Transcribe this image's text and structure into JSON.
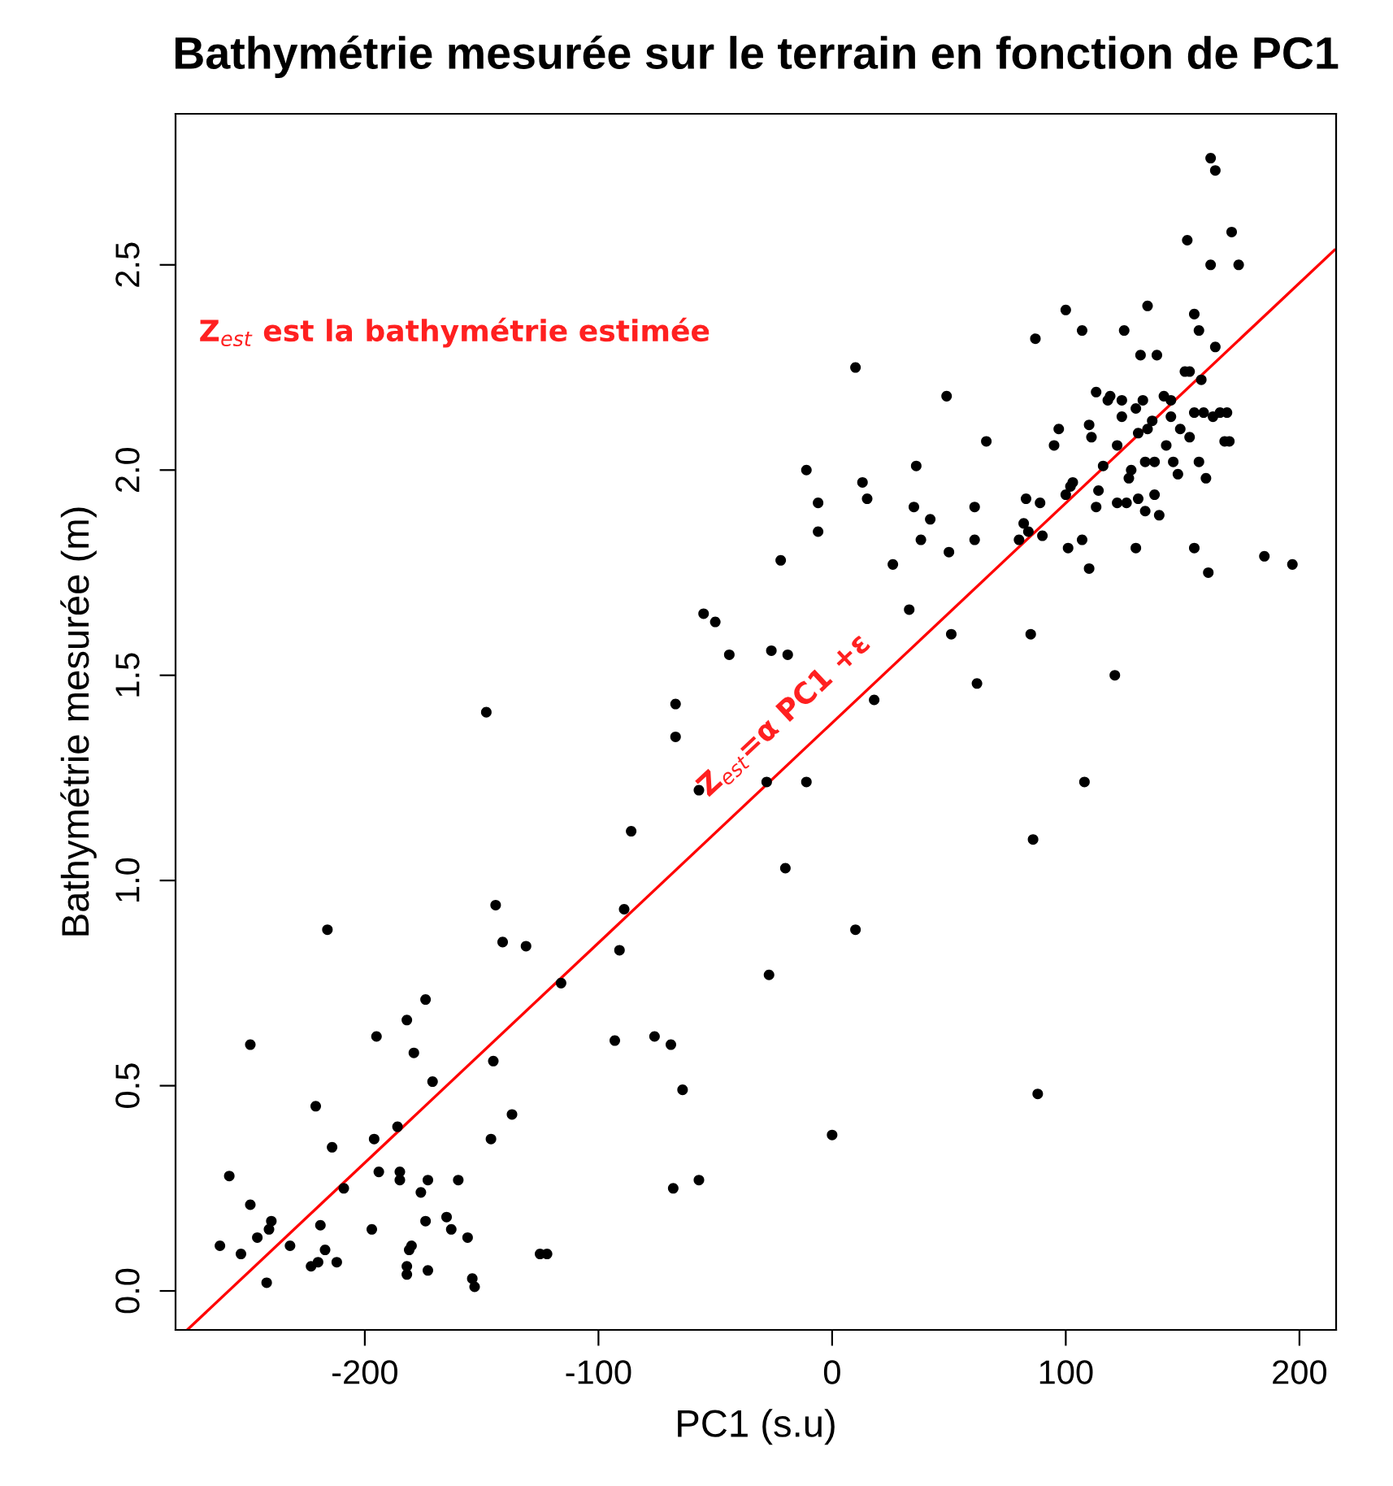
{
  "chart_data": {
    "type": "scatter",
    "title": "Bathymétrie mesurée sur le terrain en fonction de PC1",
    "xlabel": "PC1 (s.u)",
    "ylabel": "Bathymétrie mesurée (m)",
    "xlim": [
      -281,
      215.7
    ],
    "ylim": [
      -0.095,
      2.868
    ],
    "xticks": [
      -200,
      -100,
      0,
      100,
      200
    ],
    "yticks": [
      {
        "value": 0,
        "label": "0.0"
      },
      {
        "value": 0.5,
        "label": "0.5"
      },
      {
        "value": 1,
        "label": "1.0"
      },
      {
        "value": 1.5,
        "label": "1.5"
      },
      {
        "value": 2,
        "label": "2.0"
      },
      {
        "value": 2.5,
        "label": "2.5"
      }
    ],
    "grid": false,
    "annotations": [
      "Z$_{est}$ est la bathymétrie estimée",
      "Z$_{est}$=α PC1 +ε"
    ],
    "series": [
      {
        "marker": "circle",
        "color": "#000000",
        "x": [
          -258,
          -262,
          -253,
          -249,
          -249,
          -246,
          -241,
          -240,
          -242,
          -232,
          -223,
          -220,
          -221,
          -219,
          -217,
          -216,
          -214,
          -212,
          -209,
          -197,
          -196,
          -195,
          -194,
          -186,
          -185,
          -185,
          -182,
          -181,
          -180,
          -182,
          -182,
          -179,
          -176,
          -174,
          -174,
          -173,
          -173,
          -171,
          -165,
          -163,
          -160,
          -156,
          -154,
          -153,
          -148,
          -146,
          -145,
          -144,
          -141,
          -137,
          -131,
          -125,
          -122,
          -116,
          -93,
          -91,
          -89,
          -86,
          -76,
          -69,
          -67,
          -67,
          -68,
          -64,
          -57,
          -57,
          -55,
          -50,
          -44,
          -28,
          -27,
          -26,
          -22,
          -20,
          -19,
          -11,
          -11,
          -6,
          -6,
          0,
          10,
          10,
          13,
          15,
          18,
          26,
          33,
          35,
          36,
          38,
          42,
          49,
          51,
          50,
          61,
          61,
          62,
          66,
          80,
          82,
          83,
          84,
          85,
          86,
          87,
          88,
          89,
          90,
          95,
          97,
          100,
          101,
          100,
          102,
          103,
          107,
          107,
          108,
          110,
          110,
          111,
          113,
          113,
          114,
          116,
          118,
          119,
          121,
          122,
          122,
          124,
          124,
          125,
          126,
          127,
          128,
          130,
          130,
          131,
          131,
          132,
          133,
          134,
          134,
          135,
          135,
          137,
          138,
          138,
          139,
          140,
          142,
          143,
          145,
          145,
          146,
          148,
          149,
          151,
          152,
          153,
          153,
          155,
          155,
          155,
          157,
          157,
          158,
          159,
          160,
          162,
          161,
          162,
          163,
          164,
          164,
          166,
          168,
          170,
          171,
          174,
          169,
          185,
          197
        ],
        "values": [
          0.28,
          0.11,
          0.09,
          0.21,
          0.6,
          0.13,
          0.15,
          0.17,
          0.02,
          0.11,
          0.06,
          0.07,
          0.45,
          0.16,
          0.1,
          0.88,
          0.35,
          0.07,
          0.25,
          0.15,
          0.37,
          0.62,
          0.29,
          0.4,
          0.27,
          0.29,
          0.66,
          0.1,
          0.11,
          0.04,
          0.06,
          0.58,
          0.24,
          0.71,
          0.17,
          0.05,
          0.27,
          0.51,
          0.18,
          0.15,
          0.27,
          0.13,
          0.03,
          0.01,
          1.41,
          0.37,
          0.56,
          0.94,
          0.85,
          0.43,
          0.84,
          0.09,
          0.09,
          0.75,
          0.61,
          0.83,
          0.93,
          1.12,
          0.62,
          0.6,
          1.43,
          1.35,
          0.25,
          0.49,
          0.27,
          1.22,
          1.65,
          1.63,
          1.55,
          1.24,
          0.77,
          1.56,
          1.78,
          1.03,
          1.55,
          1.24,
          2.0,
          1.92,
          1.85,
          0.38,
          0.88,
          2.25,
          1.97,
          1.93,
          1.44,
          1.77,
          1.66,
          1.91,
          2.01,
          1.83,
          1.88,
          2.18,
          1.6,
          1.8,
          1.91,
          1.83,
          1.48,
          2.07,
          1.83,
          1.87,
          1.93,
          1.85,
          1.6,
          1.1,
          2.32,
          0.48,
          1.92,
          1.84,
          2.06,
          2.1,
          2.39,
          1.81,
          1.94,
          1.96,
          1.97,
          2.34,
          1.83,
          1.24,
          2.11,
          1.76,
          2.08,
          2.19,
          1.91,
          1.95,
          2.01,
          2.17,
          2.18,
          1.5,
          2.06,
          1.92,
          2.17,
          2.13,
          2.34,
          1.92,
          1.98,
          2.0,
          2.15,
          1.81,
          2.09,
          1.93,
          2.28,
          2.17,
          1.9,
          2.02,
          2.4,
          2.1,
          2.12,
          2.02,
          1.94,
          2.28,
          1.89,
          2.18,
          2.06,
          2.17,
          2.13,
          2.02,
          1.99,
          2.1,
          2.24,
          2.56,
          2.24,
          2.08,
          2.38,
          2.14,
          1.81,
          2.34,
          2.02,
          2.22,
          2.14,
          1.98,
          2.5,
          1.75,
          2.76,
          2.13,
          2.73,
          2.3,
          2.14,
          2.07,
          2.07,
          2.58,
          2.5,
          2.14,
          1.79,
          1.77
        ]
      },
      {
        "type": "line",
        "color": "#ff0000",
        "x": [
          -276,
          215
        ],
        "values": [
          -0.095,
          2.536
        ]
      }
    ]
  }
}
